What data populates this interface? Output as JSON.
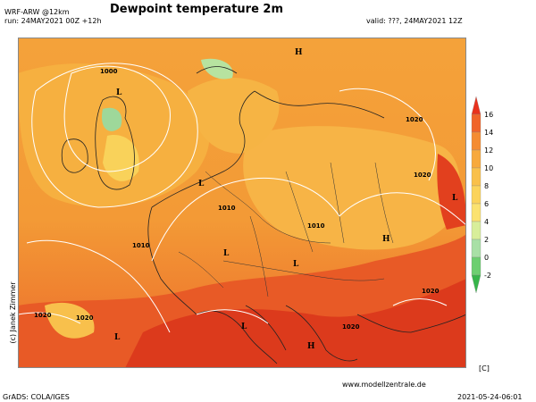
{
  "header": {
    "title": "Dewpoint temperature 2m",
    "model": "WRF-ARW @12km",
    "run": "run: 24MAY2021 00Z +12h",
    "valid": "valid: ???, 24MAY2021 12Z"
  },
  "footer": {
    "website": "www.modellzentrale.de",
    "grads": "GrADS: COLA/IGES",
    "timestamp": "2021-05-24-06:01",
    "side_credit": "(c) Janek Zimmer"
  },
  "colorbar": {
    "unit": "[C]",
    "levels": [
      "16",
      "14",
      "12",
      "10",
      "8",
      "6",
      "4",
      "2",
      "0",
      "-2"
    ],
    "colors": [
      "#e8321e",
      "#f0642a",
      "#f48c32",
      "#f7a93c",
      "#f9c04a",
      "#fbd35a",
      "#fbe270",
      "#d8ee9a",
      "#a8e0a6",
      "#6ccf70",
      "#36b54a"
    ]
  },
  "map": {
    "pressure_labels": [
      {
        "text": "1000"
      },
      {
        "text": "1010"
      },
      {
        "text": "1010"
      },
      {
        "text": "1010"
      },
      {
        "text": "1020"
      },
      {
        "text": "1020"
      },
      {
        "text": "1020"
      },
      {
        "text": "1020"
      },
      {
        "text": "1020"
      },
      {
        "text": "1020"
      }
    ],
    "pressure_markers": [
      "L",
      "L",
      "L",
      "L",
      "L",
      "L",
      "H",
      "H",
      "H",
      "L"
    ]
  }
}
